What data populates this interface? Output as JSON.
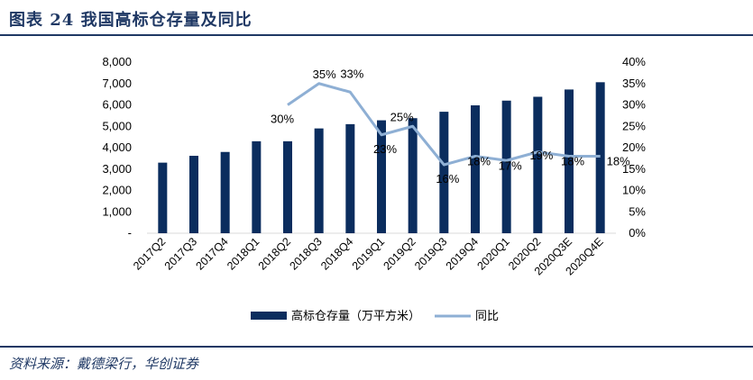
{
  "figure": {
    "title": "图表 24    我国高标仓存量及同比",
    "source": "资料来源：戴德梁行，华创证券"
  },
  "colors": {
    "bar": "#0b2d5e",
    "line": "#8eafd4",
    "rule": "#1f3864"
  },
  "chart_data": {
    "type": "bar",
    "categories": [
      "2017Q2",
      "2017Q3",
      "2017Q4",
      "2018Q1",
      "2018Q2",
      "2018Q3",
      "2018Q4",
      "2019Q1",
      "2019Q2",
      "2019Q3",
      "2019Q4",
      "2020Q1",
      "2020Q2",
      "2020Q3E",
      "2020Q4E"
    ],
    "series": [
      {
        "name": "高标仓存量（万平方米）",
        "type": "bar",
        "axis": "left",
        "values": [
          3300,
          3620,
          3800,
          4300,
          4300,
          4900,
          5100,
          5280,
          5380,
          5680,
          5980,
          6200,
          6380,
          6720,
          7060
        ]
      },
      {
        "name": "同比",
        "type": "line",
        "axis": "right",
        "values": [
          null,
          null,
          null,
          null,
          30,
          35,
          33,
          23,
          25,
          16,
          18,
          17,
          19,
          18,
          18
        ],
        "labels": [
          "",
          "",
          "",
          "",
          "30%",
          "35%",
          "33%",
          "23%",
          "25%",
          "16%",
          "18%",
          "17%",
          "19%",
          "18%",
          "18%"
        ]
      }
    ],
    "y_left": {
      "ylim": [
        0,
        8000
      ],
      "ticks": [
        "-",
        "1,000",
        "2,000",
        "3,000",
        "4,000",
        "5,000",
        "6,000",
        "7,000",
        "8,000"
      ]
    },
    "y_right": {
      "ylim": [
        0,
        40
      ],
      "ticks": [
        "0%",
        "5%",
        "10%",
        "15%",
        "20%",
        "25%",
        "30%",
        "35%",
        "40%"
      ]
    },
    "legend": {
      "position": "bottom",
      "entries": [
        "高标仓存量（万平方米）",
        "同比"
      ]
    },
    "grid": false
  }
}
